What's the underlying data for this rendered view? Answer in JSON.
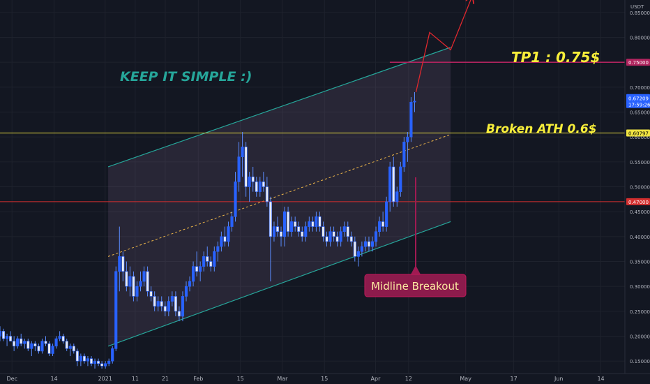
{
  "chart_data": {
    "type": "candlestick",
    "currency_label": "USDT",
    "y_ticks": [
      "0.15000",
      "0.20000",
      "0.25000",
      "0.30000",
      "0.35000",
      "0.40000",
      "0.45000",
      "0.50000",
      "0.55000",
      "0.60000",
      "0.65000",
      "0.70000",
      "0.75000",
      "0.80000",
      "0.85000"
    ],
    "y_tick_values": [
      0.15,
      0.2,
      0.25,
      0.3,
      0.35,
      0.4,
      0.45,
      0.5,
      0.55,
      0.6,
      0.65,
      0.7,
      0.75,
      0.8,
      0.85
    ],
    "x_ticks": [
      "Dec",
      "14",
      "2021",
      "11",
      "21",
      "Feb",
      "15",
      "Mar",
      "15",
      "Apr",
      "12",
      "May",
      "17",
      "Jun",
      "14"
    ],
    "x_tick_days": [
      0,
      14,
      31,
      41,
      51,
      62,
      76,
      90,
      104,
      121,
      132,
      151,
      167,
      182,
      196
    ],
    "ylim": [
      0.125,
      0.875
    ],
    "xlim_days": [
      -4,
      204
    ],
    "candles_ohlc": [
      [
        0.2,
        0.22,
        0.19,
        0.21
      ],
      [
        0.21,
        0.215,
        0.19,
        0.195
      ],
      [
        0.195,
        0.205,
        0.18,
        0.2
      ],
      [
        0.2,
        0.21,
        0.19,
        0.19
      ],
      [
        0.19,
        0.2,
        0.17,
        0.18
      ],
      [
        0.18,
        0.2,
        0.175,
        0.195
      ],
      [
        0.195,
        0.205,
        0.18,
        0.185
      ],
      [
        0.185,
        0.195,
        0.175,
        0.19
      ],
      [
        0.19,
        0.195,
        0.17,
        0.175
      ],
      [
        0.175,
        0.19,
        0.16,
        0.185
      ],
      [
        0.185,
        0.19,
        0.17,
        0.18
      ],
      [
        0.18,
        0.185,
        0.165,
        0.17
      ],
      [
        0.17,
        0.195,
        0.165,
        0.19
      ],
      [
        0.19,
        0.2,
        0.18,
        0.185
      ],
      [
        0.185,
        0.19,
        0.16,
        0.165
      ],
      [
        0.165,
        0.185,
        0.16,
        0.18
      ],
      [
        0.18,
        0.2,
        0.175,
        0.195
      ],
      [
        0.195,
        0.21,
        0.19,
        0.2
      ],
      [
        0.2,
        0.205,
        0.185,
        0.19
      ],
      [
        0.19,
        0.195,
        0.17,
        0.175
      ],
      [
        0.175,
        0.185,
        0.16,
        0.18
      ],
      [
        0.18,
        0.185,
        0.165,
        0.17
      ],
      [
        0.17,
        0.175,
        0.14,
        0.15
      ],
      [
        0.15,
        0.165,
        0.14,
        0.16
      ],
      [
        0.16,
        0.165,
        0.145,
        0.15
      ],
      [
        0.15,
        0.16,
        0.14,
        0.155
      ],
      [
        0.155,
        0.16,
        0.14,
        0.145
      ],
      [
        0.145,
        0.155,
        0.135,
        0.15
      ],
      [
        0.15,
        0.155,
        0.14,
        0.145
      ],
      [
        0.145,
        0.15,
        0.135,
        0.14
      ],
      [
        0.14,
        0.15,
        0.135,
        0.145
      ],
      [
        0.145,
        0.155,
        0.14,
        0.15
      ],
      [
        0.15,
        0.18,
        0.145,
        0.175
      ],
      [
        0.175,
        0.34,
        0.17,
        0.33
      ],
      [
        0.33,
        0.42,
        0.29,
        0.36
      ],
      [
        0.36,
        0.37,
        0.31,
        0.33
      ],
      [
        0.33,
        0.35,
        0.29,
        0.3
      ],
      [
        0.3,
        0.34,
        0.28,
        0.32
      ],
      [
        0.32,
        0.33,
        0.27,
        0.28
      ],
      [
        0.28,
        0.31,
        0.27,
        0.3
      ],
      [
        0.3,
        0.33,
        0.29,
        0.31
      ],
      [
        0.31,
        0.34,
        0.3,
        0.33
      ],
      [
        0.33,
        0.34,
        0.28,
        0.29
      ],
      [
        0.29,
        0.3,
        0.27,
        0.28
      ],
      [
        0.28,
        0.29,
        0.25,
        0.26
      ],
      [
        0.26,
        0.28,
        0.25,
        0.27
      ],
      [
        0.27,
        0.28,
        0.25,
        0.26
      ],
      [
        0.26,
        0.27,
        0.24,
        0.25
      ],
      [
        0.25,
        0.28,
        0.24,
        0.27
      ],
      [
        0.27,
        0.29,
        0.26,
        0.28
      ],
      [
        0.28,
        0.29,
        0.24,
        0.25
      ],
      [
        0.25,
        0.26,
        0.23,
        0.24
      ],
      [
        0.24,
        0.29,
        0.23,
        0.28
      ],
      [
        0.28,
        0.31,
        0.27,
        0.3
      ],
      [
        0.3,
        0.32,
        0.29,
        0.31
      ],
      [
        0.31,
        0.35,
        0.3,
        0.34
      ],
      [
        0.34,
        0.37,
        0.32,
        0.33
      ],
      [
        0.33,
        0.35,
        0.31,
        0.34
      ],
      [
        0.34,
        0.37,
        0.33,
        0.36
      ],
      [
        0.36,
        0.38,
        0.34,
        0.35
      ],
      [
        0.35,
        0.36,
        0.33,
        0.34
      ],
      [
        0.34,
        0.38,
        0.33,
        0.37
      ],
      [
        0.37,
        0.39,
        0.35,
        0.38
      ],
      [
        0.38,
        0.41,
        0.37,
        0.4
      ],
      [
        0.4,
        0.42,
        0.38,
        0.39
      ],
      [
        0.39,
        0.43,
        0.38,
        0.42
      ],
      [
        0.42,
        0.45,
        0.41,
        0.44
      ],
      [
        0.44,
        0.53,
        0.43,
        0.51
      ],
      [
        0.51,
        0.59,
        0.49,
        0.56
      ],
      [
        0.56,
        0.61,
        0.52,
        0.58
      ],
      [
        0.58,
        0.59,
        0.48,
        0.5
      ],
      [
        0.5,
        0.53,
        0.47,
        0.52
      ],
      [
        0.52,
        0.54,
        0.49,
        0.51
      ],
      [
        0.51,
        0.52,
        0.48,
        0.49
      ],
      [
        0.49,
        0.52,
        0.48,
        0.51
      ],
      [
        0.51,
        0.53,
        0.49,
        0.5
      ],
      [
        0.5,
        0.52,
        0.46,
        0.47
      ],
      [
        0.47,
        0.48,
        0.31,
        0.4
      ],
      [
        0.4,
        0.43,
        0.39,
        0.42
      ],
      [
        0.42,
        0.44,
        0.4,
        0.41
      ],
      [
        0.41,
        0.42,
        0.38,
        0.4
      ],
      [
        0.4,
        0.46,
        0.38,
        0.45
      ],
      [
        0.45,
        0.46,
        0.4,
        0.41
      ],
      [
        0.41,
        0.44,
        0.4,
        0.43
      ],
      [
        0.43,
        0.44,
        0.41,
        0.42
      ],
      [
        0.42,
        0.43,
        0.4,
        0.41
      ],
      [
        0.41,
        0.42,
        0.39,
        0.4
      ],
      [
        0.4,
        0.43,
        0.39,
        0.42
      ],
      [
        0.42,
        0.44,
        0.41,
        0.43
      ],
      [
        0.43,
        0.44,
        0.41,
        0.42
      ],
      [
        0.42,
        0.45,
        0.41,
        0.44
      ],
      [
        0.44,
        0.45,
        0.41,
        0.42
      ],
      [
        0.42,
        0.43,
        0.39,
        0.4
      ],
      [
        0.4,
        0.41,
        0.38,
        0.39
      ],
      [
        0.39,
        0.42,
        0.38,
        0.41
      ],
      [
        0.41,
        0.42,
        0.39,
        0.4
      ],
      [
        0.4,
        0.41,
        0.38,
        0.39
      ],
      [
        0.39,
        0.42,
        0.38,
        0.41
      ],
      [
        0.41,
        0.43,
        0.4,
        0.42
      ],
      [
        0.42,
        0.43,
        0.39,
        0.4
      ],
      [
        0.4,
        0.41,
        0.38,
        0.39
      ],
      [
        0.39,
        0.4,
        0.35,
        0.36
      ],
      [
        0.36,
        0.38,
        0.34,
        0.37
      ],
      [
        0.37,
        0.39,
        0.36,
        0.38
      ],
      [
        0.38,
        0.4,
        0.37,
        0.39
      ],
      [
        0.39,
        0.4,
        0.37,
        0.38
      ],
      [
        0.38,
        0.4,
        0.37,
        0.39
      ],
      [
        0.39,
        0.42,
        0.38,
        0.41
      ],
      [
        0.41,
        0.44,
        0.4,
        0.43
      ],
      [
        0.43,
        0.45,
        0.41,
        0.42
      ],
      [
        0.42,
        0.48,
        0.41,
        0.47
      ],
      [
        0.47,
        0.55,
        0.45,
        0.54
      ],
      [
        0.54,
        0.56,
        0.46,
        0.47
      ],
      [
        0.47,
        0.5,
        0.46,
        0.49
      ],
      [
        0.49,
        0.55,
        0.48,
        0.54
      ],
      [
        0.54,
        0.6,
        0.53,
        0.59
      ],
      [
        0.59,
        0.61,
        0.55,
        0.6
      ],
      [
        0.6,
        0.68,
        0.59,
        0.67
      ],
      [
        0.67,
        0.69,
        0.65,
        0.672
      ]
    ],
    "channel": {
      "upper_start": {
        "day": 32,
        "price": 0.54
      },
      "upper_end": {
        "day": 146,
        "price": 0.78
      },
      "lower_start": {
        "day": 32,
        "price": 0.18
      },
      "lower_end": {
        "day": 146,
        "price": 0.43
      },
      "color": "#26a69a"
    },
    "levels": [
      {
        "price": 0.60797,
        "label": "0.60797",
        "color": "#f0e442"
      },
      {
        "price": 0.47,
        "label": "0.47000",
        "color": "#d32f2f"
      },
      {
        "price": 0.75,
        "label": "0.75000",
        "color": "#b0245e"
      }
    ],
    "current_price": {
      "label": "0.67209",
      "sublabel": "17:59:26",
      "price": 0.67209
    },
    "annotations": {
      "title": "KEEP IT SIMPLE :)",
      "tp1": "TP1 : 0.75$",
      "ath": "Broken ATH 0.6$",
      "midline": "Midline Breakout"
    },
    "colors": {
      "candle": "#2962ff",
      "background": "#131722",
      "teal_text": "#26a69a",
      "yellow_text": "#f7ee3a",
      "arrow": "#e0282e"
    }
  }
}
